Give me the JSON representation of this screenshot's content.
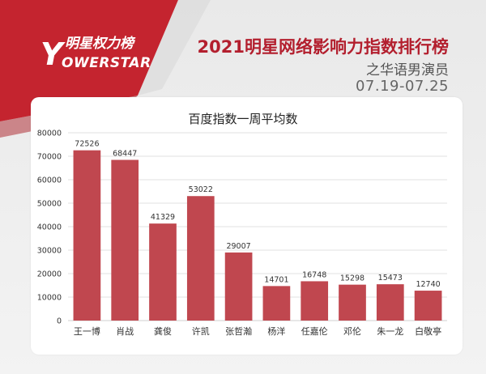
{
  "brand": {
    "name_cn": "明星权力榜",
    "name_en": "OWERSTAR",
    "y_glyph": "Y",
    "primary_color": "#c4242f"
  },
  "header": {
    "title": "2021明星网络影响力指数排行榜",
    "subtitle": "之华语男演员",
    "date_range": "07.19-07.25",
    "title_color": "#b31f2e"
  },
  "chart_data": {
    "type": "bar",
    "title": "百度指数一周平均数",
    "categories": [
      "王一博",
      "肖战",
      "龚俊",
      "许凯",
      "张哲瀚",
      "杨洋",
      "任嘉伦",
      "邓伦",
      "朱一龙",
      "白敬亭"
    ],
    "values": [
      72526,
      68447,
      41329,
      53022,
      29007,
      14701,
      16748,
      15298,
      15473,
      12740
    ],
    "ylim": [
      0,
      80000
    ],
    "yticks": [
      0,
      10000,
      20000,
      30000,
      40000,
      50000,
      60000,
      70000,
      80000
    ],
    "grid": true,
    "xlabel": "",
    "ylabel": "",
    "bar_color": "#c0474f"
  }
}
